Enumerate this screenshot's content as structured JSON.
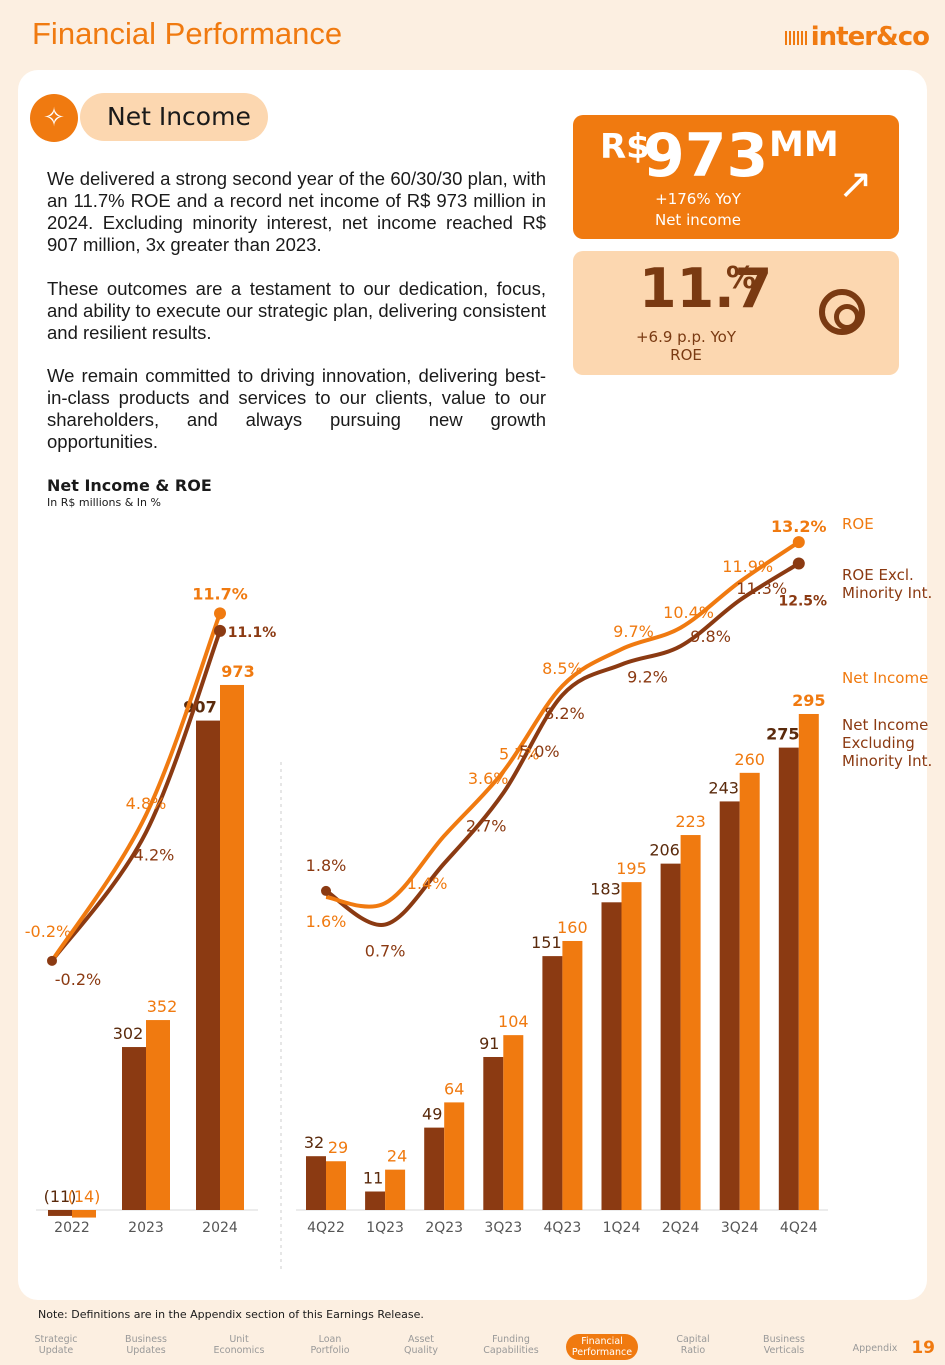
{
  "header": {
    "title": "Financial Performance",
    "logo": "inter&co"
  },
  "section": {
    "icon": "sparkle-icon",
    "label": "Net Income"
  },
  "paragraphs": [
    "We delivered a strong second year of the 60/30/30 plan, with an 11.7% ROE and a record net income of R$ 973 million in 2024. Excluding minority interest, net income reached R$ 907 million, 3x greater than 2023.",
    "These outcomes are a testament to our dedication, focus, and ability to execute our strategic plan, delivering consistent and resilient results.",
    "We remain committed to driving innovation, delivering best-in-class products and services to our clients, value to our shareholders, and always pursuing new growth opportunities."
  ],
  "kpis": {
    "net_income": {
      "currency": "R$",
      "value": "973",
      "unit": "MM",
      "change": "+176% YoY",
      "label": "Net income",
      "icon": "arrow-up-right-icon"
    },
    "roe": {
      "value": "11.7",
      "unit": "%",
      "change": "+6.9 p.p. YoY",
      "label": "ROE",
      "icon": "target-icon"
    }
  },
  "chart_title": "Net Income & ROE",
  "chart_subtitle": "In R$ millions & In %",
  "legend": {
    "roe": "ROE",
    "roe_excl": [
      "ROE Excl.",
      "Minority Int."
    ],
    "net_income": "Net Income",
    "net_income_excl": [
      "Net Income",
      "Excluding",
      "Minority Int."
    ]
  },
  "colors": {
    "orange": "#f07a10",
    "brown": "#8b3a12",
    "light_orange": "#fcd7b0"
  },
  "chart_data": [
    {
      "type": "bar+line",
      "categories": [
        "2022",
        "2023",
        "2024"
      ],
      "series": [
        {
          "name": "Net Income Excluding Minority Int.",
          "kind": "bar",
          "values": [
            -11,
            302,
            907
          ],
          "labels": [
            "(11)",
            "302",
            "907"
          ]
        },
        {
          "name": "Net Income",
          "kind": "bar",
          "values": [
            -14,
            352,
            973
          ],
          "labels": [
            "(14)",
            "352",
            "973"
          ]
        },
        {
          "name": "ROE",
          "kind": "line",
          "values": [
            -0.2,
            4.8,
            11.7
          ],
          "labels": [
            "-0.2%",
            "4.8%",
            "11.7%"
          ]
        },
        {
          "name": "ROE Excl. Minority Int.",
          "kind": "line",
          "values": [
            -0.2,
            4.2,
            11.1
          ],
          "labels": [
            "-0.2%",
            "4.2%",
            "11.1%"
          ]
        }
      ]
    },
    {
      "type": "bar+line",
      "categories": [
        "4Q22",
        "1Q23",
        "2Q23",
        "3Q23",
        "4Q23",
        "1Q24",
        "2Q24",
        "3Q24",
        "4Q24"
      ],
      "series": [
        {
          "name": "Net Income Excluding Minority Int.",
          "kind": "bar",
          "values": [
            32,
            11,
            49,
            91,
            151,
            183,
            206,
            243,
            275
          ]
        },
        {
          "name": "Net Income",
          "kind": "bar",
          "values": [
            29,
            24,
            64,
            104,
            160,
            195,
            223,
            260,
            295
          ]
        },
        {
          "name": "ROE",
          "kind": "line",
          "values": [
            1.6,
            1.4,
            3.6,
            5.7,
            8.5,
            9.7,
            10.4,
            11.9,
            13.2
          ],
          "labels": [
            "1.6%",
            "1.4%",
            "3.6%",
            "5.7%",
            "8.5%",
            "9.7%",
            "10.4%",
            "11.9%",
            "13.2%"
          ]
        },
        {
          "name": "ROE Excl. Minority Int.",
          "kind": "line",
          "values": [
            1.8,
            0.7,
            2.7,
            5.0,
            8.2,
            9.2,
            9.8,
            11.3,
            12.5
          ],
          "labels": [
            "1.8%",
            "0.7%",
            "2.7%",
            "5.0%",
            "8.2%",
            "9.2%",
            "9.8%",
            "11.3%",
            "12.5%"
          ]
        }
      ]
    }
  ],
  "footnote": "Note: Definitions are in the Appendix section of this Earnings Release.",
  "nav": [
    {
      "label": [
        "Strategic",
        "Update"
      ]
    },
    {
      "label": [
        "Business",
        "Updates"
      ]
    },
    {
      "label": [
        "Unit",
        "Economics"
      ]
    },
    {
      "label": [
        "Loan",
        "Portfolio"
      ]
    },
    {
      "label": [
        "Asset",
        "Quality"
      ]
    },
    {
      "label": [
        "Funding",
        "Capabilities"
      ]
    },
    {
      "label": [
        "Financial",
        "Performance"
      ],
      "active": true
    },
    {
      "label": [
        "Capital",
        "Ratio"
      ]
    },
    {
      "label": [
        "Business",
        "Verticals"
      ]
    },
    {
      "label": [
        "Appendix"
      ]
    }
  ],
  "page_number": "19"
}
